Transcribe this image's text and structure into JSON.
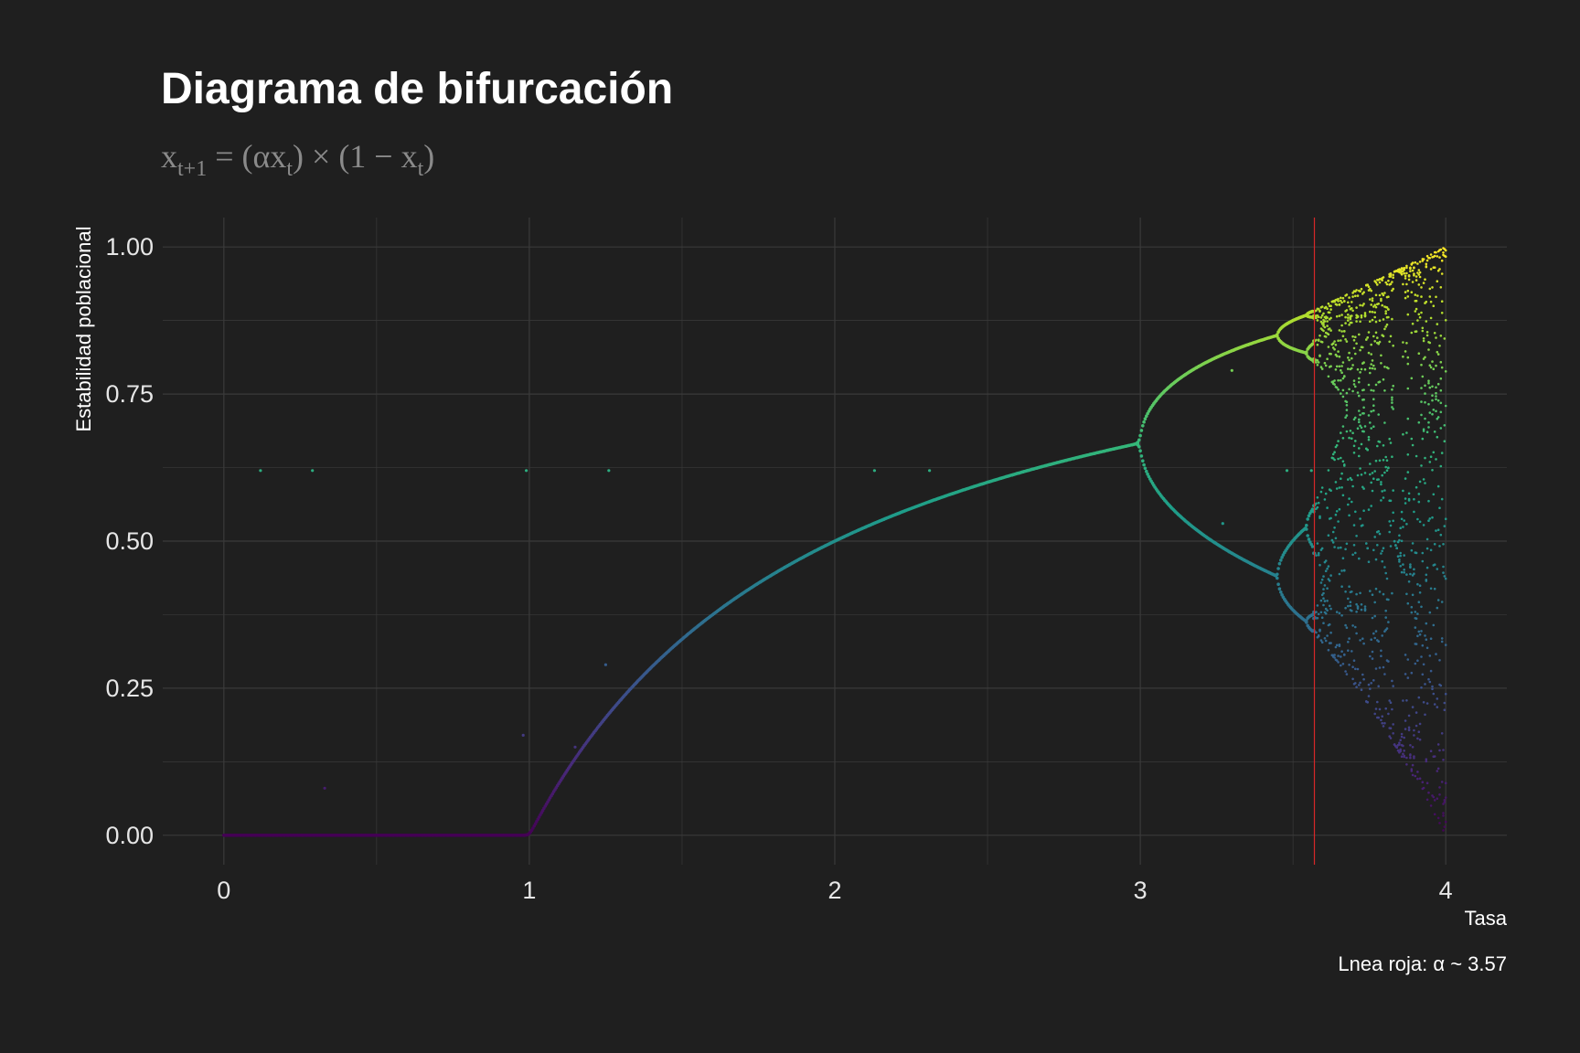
{
  "chart_data": {
    "type": "scatter",
    "title": "Diagrama de bifurcación",
    "subtitle": "x_{t+1} = (αx_t) × (1 − x_t)",
    "xlabel": "Tasa",
    "ylabel": "Estabilidad poblacional",
    "caption": "Lnea roja: α ~ 3.57",
    "xlim": [
      -0.2,
      4.2
    ],
    "ylim": [
      -0.05,
      1.05
    ],
    "x_ticks": [
      0,
      1,
      2,
      3,
      4
    ],
    "y_ticks": [
      0.0,
      0.25,
      0.5,
      0.75,
      1.0
    ],
    "x_tick_labels": [
      "0",
      "1",
      "2",
      "3",
      "4"
    ],
    "y_tick_labels": [
      "0.00",
      "0.25",
      "0.50",
      "0.75",
      "1.00"
    ],
    "grid": true,
    "reference_line": {
      "orientation": "vertical",
      "x": 3.57,
      "color": "#d62728"
    },
    "series": [
      {
        "model": "logistic map x(t+1) = a·x(t)·(1 − x(t))",
        "x_range": [
          0,
          4
        ],
        "color_by": "y",
        "colormap": "viridis"
      }
    ],
    "stray_points": [
      {
        "x": 0.12,
        "y": 0.62
      },
      {
        "x": 0.29,
        "y": 0.62
      },
      {
        "x": 0.99,
        "y": 0.62
      },
      {
        "x": 1.26,
        "y": 0.62
      },
      {
        "x": 2.13,
        "y": 0.62
      },
      {
        "x": 2.31,
        "y": 0.62
      },
      {
        "x": 3.48,
        "y": 0.62
      },
      {
        "x": 3.56,
        "y": 0.62
      },
      {
        "x": 3.3,
        "y": 0.79
      },
      {
        "x": 3.27,
        "y": 0.53
      },
      {
        "x": 0.33,
        "y": 0.08
      },
      {
        "x": 1.25,
        "y": 0.29
      },
      {
        "x": 1.3,
        "y": 0.23
      },
      {
        "x": 1.15,
        "y": 0.15
      },
      {
        "x": 0.98,
        "y": 0.17
      }
    ],
    "colors": {
      "background": "#1f1f1f",
      "grid": "#3a3a3a"
    }
  }
}
